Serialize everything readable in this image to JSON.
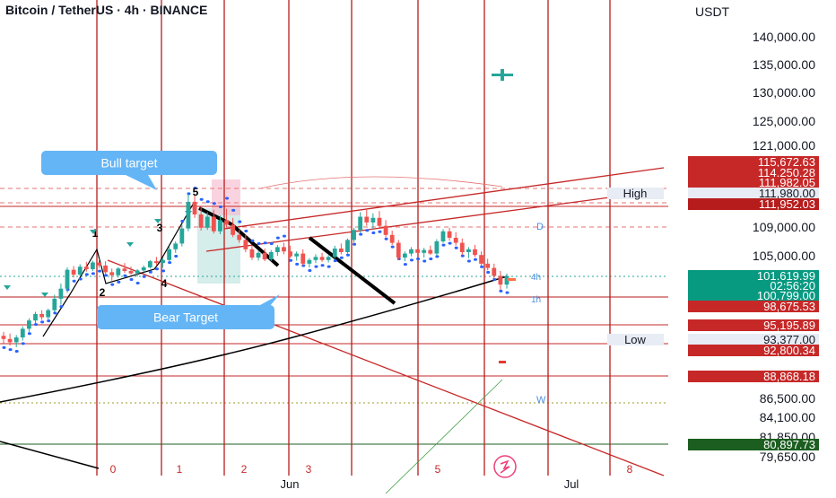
{
  "header": {
    "title": "Bitcoin / TetherUS · 4h · BINANCE"
  },
  "currency_label": "USDT",
  "chart_data": {
    "type": "candlestick",
    "title": "Bitcoin / TetherUS · 4h · BINANCE",
    "exchange": "BINANCE",
    "timeframe": "4h",
    "y_axis_ticks": [
      {
        "value": 140000,
        "label": "140,000.00"
      },
      {
        "value": 135000,
        "label": "135,000.00"
      },
      {
        "value": 130000,
        "label": "130,000.00"
      },
      {
        "value": 125000,
        "label": "125,000.00"
      },
      {
        "value": 121000,
        "label": "121,000.00"
      },
      {
        "value": 109000,
        "label": "109,000.00"
      },
      {
        "value": 105000,
        "label": "105,000.00"
      },
      {
        "value": 86500,
        "label": "86,500.00"
      },
      {
        "value": 84100,
        "label": "84,100.00"
      },
      {
        "value": 81850,
        "label": "81,850.00"
      },
      {
        "value": 79650,
        "label": "79,650.00"
      }
    ],
    "price_badges": [
      {
        "value": 115672.63,
        "label": "115,672.63",
        "color": "#c62828"
      },
      {
        "value": 114250.28,
        "label": "114,250.28",
        "color": "#c62828"
      },
      {
        "value": 111982.05,
        "label": "111,982.05",
        "color": "#c62828"
      },
      {
        "value": 111980.0,
        "label": "111,980.00",
        "color": "#e8ecf4",
        "tag": "High"
      },
      {
        "value": 111952.03,
        "label": "111,952.03",
        "color": "#b71c1c"
      },
      {
        "value": 101619.99,
        "label": "101,619.99",
        "color": "#089981"
      },
      {
        "countdown": "02:56:20",
        "color": "#089981"
      },
      {
        "value": 100799.0,
        "label": "100,799.00",
        "color": "#089981"
      },
      {
        "value": 98675.53,
        "label": "98,675.53",
        "color": "#c62828"
      },
      {
        "value": 95195.89,
        "label": "95,195.89",
        "color": "#c62828"
      },
      {
        "value": 93377.0,
        "label": "93,377.00",
        "color": "#e8ecf4",
        "tag": "Low"
      },
      {
        "value": 92800.34,
        "label": "92,800.34",
        "color": "#c62828"
      },
      {
        "value": 88868.18,
        "label": "88,868.18",
        "color": "#c62828"
      },
      {
        "value": 80897.73,
        "label": "80,897.73",
        "color": "#1b5e20"
      }
    ],
    "x_axis_labels": [
      "Jun",
      "Jul"
    ],
    "cycle_numbers": [
      "0",
      "1",
      "2",
      "3",
      "5",
      "8"
    ],
    "wave_labels": [
      "1",
      "2",
      "3",
      "4",
      "5"
    ],
    "annotations": [
      {
        "text": "Bull target",
        "color": "#5aaef5"
      },
      {
        "text": "Bear Target",
        "color": "#5aaef5"
      },
      {
        "text": "D",
        "color": "#4a90e2"
      },
      {
        "text": "W",
        "color": "#4a90e2"
      },
      {
        "text": "4h",
        "color": "#4a90e2"
      },
      {
        "text": "1h",
        "color": "#4a90e2"
      }
    ],
    "candles": [
      [
        93800,
        94300,
        92900,
        93400
      ],
      [
        93400,
        94100,
        92600,
        93000
      ],
      [
        93000,
        93900,
        92400,
        93600
      ],
      [
        93600,
        95000,
        93200,
        94700
      ],
      [
        94700,
        96400,
        94300,
        96000
      ],
      [
        96000,
        97600,
        95500,
        97200
      ],
      [
        97200,
        97900,
        96100,
        96600
      ],
      [
        96600,
        98200,
        96200,
        97900
      ],
      [
        97900,
        99800,
        97500,
        99400
      ],
      [
        99400,
        100900,
        98800,
        100400
      ],
      [
        100400,
        103100,
        100000,
        102700
      ],
      [
        102700,
        103300,
        101500,
        101900
      ],
      [
        101900,
        103600,
        101600,
        103200
      ],
      [
        103200,
        104000,
        102400,
        102800
      ],
      [
        102800,
        104200,
        102500,
        103900
      ],
      [
        103900,
        104500,
        103000,
        103400
      ],
      [
        103400,
        104100,
        102000,
        102300
      ],
      [
        102300,
        102900,
        101200,
        101800
      ],
      [
        101800,
        103100,
        101500,
        102900
      ],
      [
        102900,
        103800,
        102200,
        102500
      ],
      [
        102500,
        103200,
        101900,
        102100
      ],
      [
        102100,
        102800,
        101600,
        102600
      ],
      [
        102600,
        103400,
        102300,
        103100
      ],
      [
        103100,
        104300,
        102900,
        104100
      ],
      [
        104100,
        104800,
        103400,
        103800
      ],
      [
        103800,
        104600,
        103000,
        104300
      ],
      [
        104300,
        106300,
        104000,
        105900
      ],
      [
        105900,
        107000,
        105400,
        106700
      ],
      [
        106700,
        109200,
        106300,
        108800
      ],
      [
        108800,
        111900,
        108400,
        111200
      ],
      [
        111200,
        111800,
        109800,
        110100
      ],
      [
        110100,
        110800,
        108500,
        108900
      ],
      [
        108900,
        110300,
        108600,
        109900
      ],
      [
        109900,
        110500,
        108100,
        108400
      ],
      [
        108400,
        110000,
        108000,
        109600
      ],
      [
        109600,
        110600,
        108900,
        109200
      ],
      [
        109200,
        109800,
        107600,
        107900
      ],
      [
        107900,
        108600,
        106800,
        107200
      ],
      [
        107200,
        107900,
        105500,
        105900
      ],
      [
        105900,
        106400,
        104300,
        104700
      ],
      [
        104700,
        105700,
        104200,
        105400
      ],
      [
        105400,
        106000,
        104100,
        104400
      ],
      [
        104400,
        105800,
        104100,
        105500
      ],
      [
        105500,
        106500,
        105000,
        106200
      ],
      [
        106200,
        106800,
        105200,
        105600
      ],
      [
        105600,
        106400,
        104600,
        104900
      ],
      [
        104900,
        105600,
        104200,
        105300
      ],
      [
        105300,
        105900,
        103400,
        103700
      ],
      [
        103700,
        104600,
        103100,
        104300
      ],
      [
        104300,
        105200,
        103800,
        104800
      ],
      [
        104800,
        105400,
        104000,
        104300
      ],
      [
        104300,
        105100,
        103900,
        104800
      ],
      [
        104800,
        106400,
        104500,
        106000
      ],
      [
        106000,
        106700,
        105200,
        105500
      ],
      [
        105500,
        107400,
        105300,
        107200
      ],
      [
        107200,
        108900,
        106800,
        108600
      ],
      [
        108600,
        110300,
        108200,
        109900
      ],
      [
        109900,
        110500,
        109100,
        109400
      ],
      [
        109400,
        110200,
        108700,
        109800
      ],
      [
        109800,
        110400,
        108800,
        109100
      ],
      [
        109100,
        109600,
        107600,
        107900
      ],
      [
        107900,
        108500,
        106500,
        106800
      ],
      [
        106800,
        107200,
        104300,
        104700
      ],
      [
        104700,
        105600,
        104100,
        105300
      ],
      [
        105300,
        106200,
        104900,
        105900
      ],
      [
        105900,
        106500,
        105000,
        105400
      ],
      [
        105400,
        106100,
        104700,
        105800
      ],
      [
        105800,
        106400,
        105100,
        105300
      ],
      [
        105300,
        107300,
        105000,
        107000
      ],
      [
        107000,
        108700,
        106800,
        108400
      ],
      [
        108400,
        108900,
        107100,
        107500
      ],
      [
        107500,
        108300,
        106400,
        106800
      ],
      [
        106800,
        107400,
        105100,
        105500
      ],
      [
        105500,
        106200,
        104600,
        105900
      ],
      [
        105900,
        106500,
        104800,
        105100
      ],
      [
        105100,
        105600,
        103300,
        103700
      ],
      [
        103700,
        104500,
        102600,
        103000
      ],
      [
        103000,
        103700,
        101400,
        101700
      ],
      [
        101700,
        102500,
        100300,
        100800
      ],
      [
        100800,
        102100,
        100400,
        101620
      ]
    ]
  },
  "overlay_shapes": {
    "steelblue_dots": "#2962ff",
    "candle_up": "#26a69a",
    "candle_down": "#ef5350",
    "cycle_line": "#b71c1c",
    "ma_line": "#000000"
  },
  "watermark_icon": "tv-logo-icon"
}
